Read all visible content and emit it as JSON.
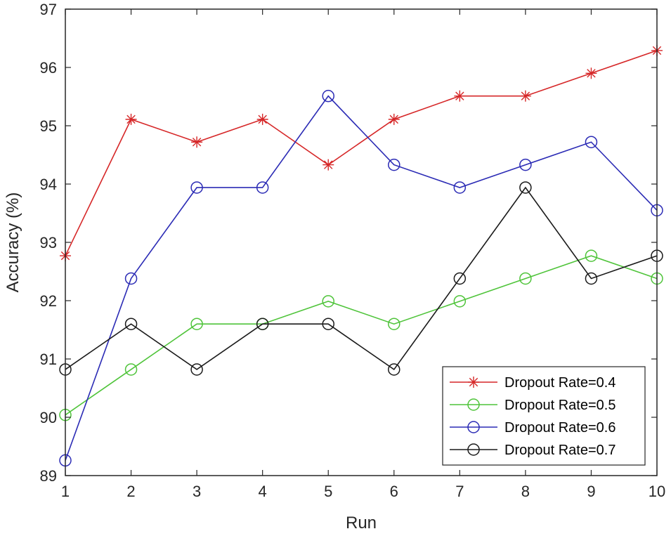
{
  "chart_data": {
    "type": "line",
    "title": "",
    "xlabel": "Run",
    "ylabel": "Accuracy (%)",
    "x": [
      1,
      2,
      3,
      4,
      5,
      6,
      7,
      8,
      9,
      10
    ],
    "xlim": [
      1,
      10
    ],
    "ylim": [
      89,
      97
    ],
    "xticks": [
      "1",
      "2",
      "3",
      "4",
      "5",
      "6",
      "7",
      "8",
      "9",
      "10"
    ],
    "yticks": [
      "89",
      "90",
      "91",
      "92",
      "93",
      "94",
      "95",
      "96",
      "97"
    ],
    "grid": false,
    "legend_position": "bottom-right",
    "series": [
      {
        "name": "Dropout Rate=0.4",
        "color": "#d62728",
        "marker": "star",
        "values": [
          92.77,
          95.11,
          94.72,
          95.11,
          94.33,
          95.11,
          95.51,
          95.51,
          95.9,
          96.29
        ]
      },
      {
        "name": "Dropout Rate=0.5",
        "color": "#4fc43a",
        "marker": "circle",
        "values": [
          90.04,
          90.82,
          91.6,
          91.6,
          91.99,
          91.6,
          91.99,
          92.38,
          92.77,
          92.38
        ]
      },
      {
        "name": "Dropout Rate=0.6",
        "color": "#2b2bb5",
        "marker": "circle",
        "values": [
          89.26,
          92.38,
          93.94,
          93.94,
          95.51,
          94.33,
          93.94,
          94.33,
          94.72,
          93.55
        ]
      },
      {
        "name": "Dropout Rate=0.7",
        "color": "#1a1a1a",
        "marker": "circle",
        "values": [
          90.82,
          91.6,
          90.82,
          91.6,
          91.6,
          90.82,
          92.38,
          93.94,
          92.38,
          92.77
        ]
      }
    ]
  }
}
